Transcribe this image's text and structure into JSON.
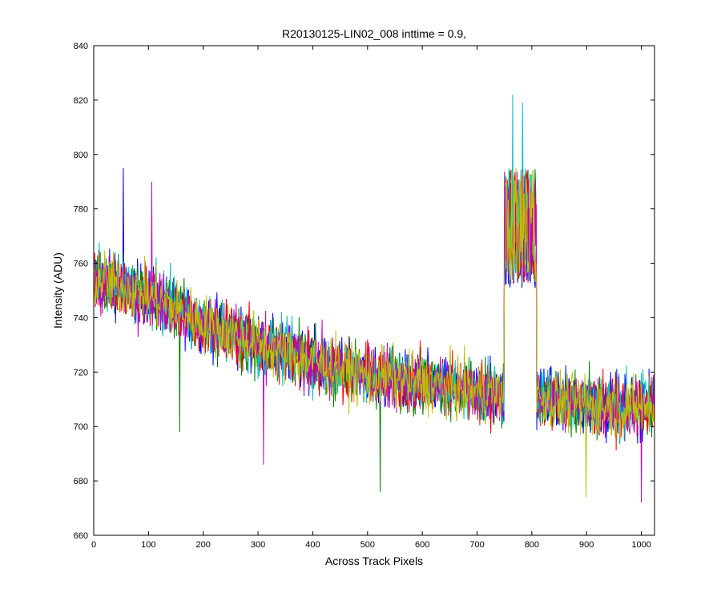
{
  "chart_data": {
    "type": "line",
    "title": "R20130125-LIN02_008 inttime = 0.9,",
    "xlabel": "Across Track Pixels",
    "ylabel": "Intensity (ADU)",
    "xlim": [
      0,
      1024
    ],
    "ylim": [
      660,
      840
    ],
    "x_ticks": [
      0,
      100,
      200,
      300,
      400,
      500,
      600,
      700,
      800,
      900,
      1000
    ],
    "y_ticks": [
      660,
      680,
      700,
      720,
      740,
      760,
      780,
      800,
      820,
      840
    ],
    "grid": false,
    "legend": "none",
    "series_colors": [
      "#0000ff",
      "#008000",
      "#ff0000",
      "#00bfbf",
      "#bf00bf",
      "#bfbf00"
    ],
    "trend": {
      "x": [
        0,
        100,
        200,
        300,
        400,
        500,
        600,
        700,
        750,
        800,
        900,
        1024
      ],
      "y": [
        755,
        748,
        738,
        730,
        724,
        719,
        716,
        713,
        712,
        711,
        708,
        707
      ]
    },
    "noise_amplitude": 10,
    "spike_region": {
      "x_range": [
        750,
        808
      ],
      "y_level": [
        752,
        795
      ],
      "max": 822
    },
    "sample_extremes": [
      {
        "x": 54,
        "y": 795
      },
      {
        "x": 106,
        "y": 790
      },
      {
        "x": 157,
        "y": 698
      },
      {
        "x": 310,
        "y": 686
      },
      {
        "x": 523,
        "y": 676
      },
      {
        "x": 765,
        "y": 822
      },
      {
        "x": 783,
        "y": 819
      },
      {
        "x": 899,
        "y": 674
      },
      {
        "x": 1000,
        "y": 672
      }
    ]
  }
}
